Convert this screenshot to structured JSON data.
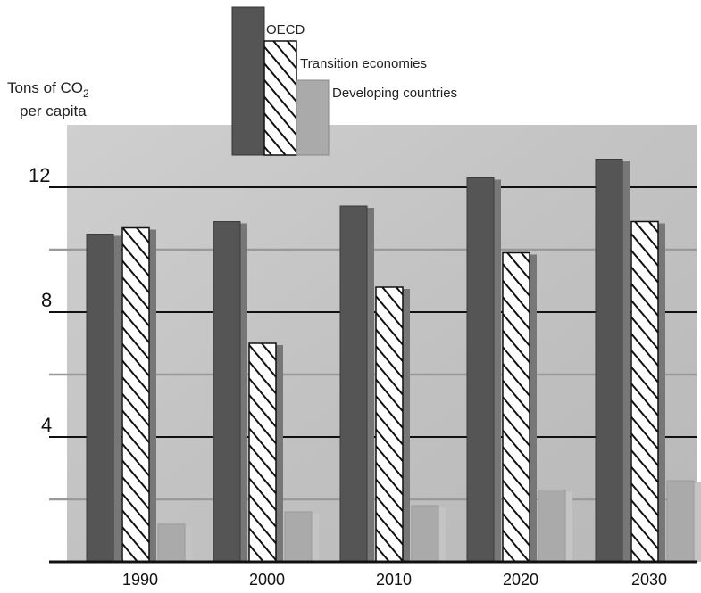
{
  "chart_data": {
    "type": "bar",
    "ylabel_line1": "Tons of CO",
    "ylabel_sub": "2",
    "ylabel_line2": "per capita",
    "categories": [
      "1990",
      "2000",
      "2010",
      "2020",
      "2030"
    ],
    "series": [
      {
        "name": "OECD",
        "values": [
          10.5,
          10.9,
          11.4,
          12.3,
          12.9
        ],
        "color": "#555555",
        "pattern": "solid"
      },
      {
        "name": "Transition economies",
        "values": [
          10.7,
          7.0,
          8.8,
          9.9,
          10.9
        ],
        "color": "#ffffff",
        "pattern": "hatched"
      },
      {
        "name": "Developing countries",
        "values": [
          1.2,
          1.6,
          1.8,
          2.3,
          2.6
        ],
        "color": "#aaaaaa",
        "pattern": "solid"
      }
    ],
    "ylim": [
      0,
      14
    ],
    "yticks": [
      "4",
      "8",
      "12"
    ],
    "yticks_values": [
      4,
      8,
      12
    ],
    "gridlines": [
      2,
      4,
      6,
      8,
      10,
      12
    ],
    "grid": true,
    "legend_position": "top-center",
    "colors": {
      "background": "#c7c7c7",
      "grid": "#111111",
      "gridLight": "#999999"
    }
  }
}
